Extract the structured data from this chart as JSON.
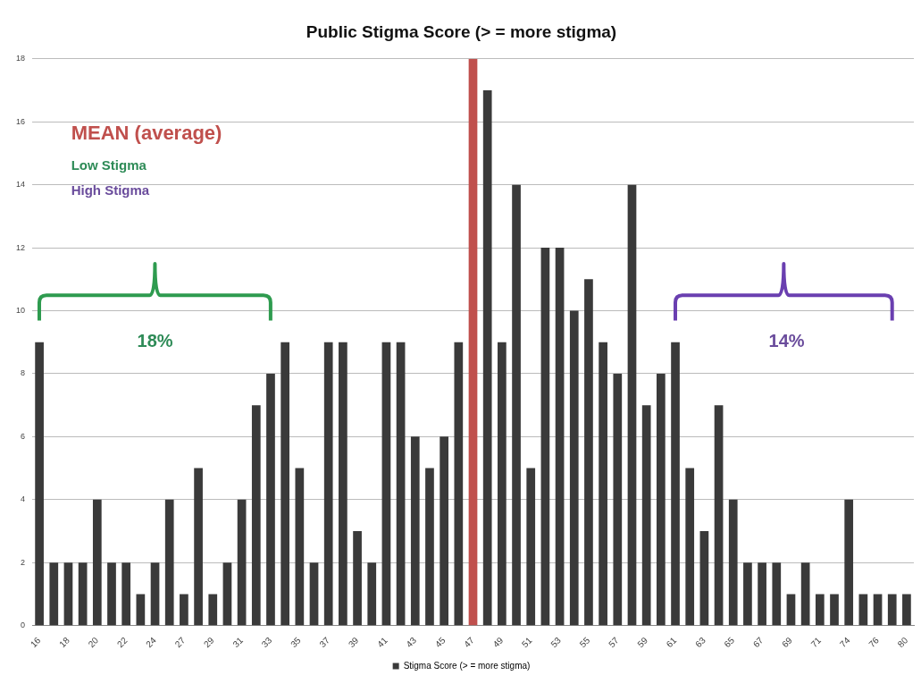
{
  "chart_data": {
    "type": "bar",
    "title": "Public Stigma Score (> = more stigma)",
    "categories": [
      "16",
      null,
      "18",
      null,
      "20",
      null,
      "22",
      null,
      "24",
      null,
      "27",
      null,
      "29",
      null,
      "31",
      null,
      "33",
      null,
      "35",
      null,
      "37",
      null,
      "39",
      null,
      "41",
      null,
      "43",
      null,
      "45",
      null,
      "47",
      null,
      "49",
      null,
      "51",
      null,
      "53",
      null,
      "55",
      null,
      "57",
      null,
      "59",
      null,
      "61",
      null,
      "63",
      null,
      "65",
      null,
      "67",
      null,
      "69",
      null,
      "71",
      null,
      "74",
      null,
      "76",
      null,
      "80"
    ],
    "series": [
      {
        "name": "Stigma Score (> = more stigma)",
        "color": "#3a3a3a",
        "values": [
          9,
          2,
          2,
          2,
          4,
          2,
          2,
          1,
          2,
          4,
          1,
          5,
          1,
          2,
          4,
          7,
          8,
          9,
          5,
          2,
          9,
          9,
          3,
          2,
          9,
          9,
          6,
          5,
          6,
          9,
          18,
          17,
          9,
          14,
          5,
          12,
          12,
          10,
          11,
          9,
          8,
          14,
          7,
          8,
          9,
          5,
          3,
          7,
          4,
          2,
          2,
          2,
          1,
          2,
          1,
          1,
          4,
          1,
          1,
          1,
          1
        ],
        "colors": [
          "#3a3a3a",
          "#3a3a3a",
          "#3a3a3a",
          "#3a3a3a",
          "#3a3a3a",
          "#3a3a3a",
          "#3a3a3a",
          "#3a3a3a",
          "#3a3a3a",
          "#3a3a3a",
          "#3a3a3a",
          "#3a3a3a",
          "#3a3a3a",
          "#3a3a3a",
          "#3a3a3a",
          "#3a3a3a",
          "#3a3a3a",
          "#3a3a3a",
          "#3a3a3a",
          "#3a3a3a",
          "#3a3a3a",
          "#3a3a3a",
          "#3a3a3a",
          "#3a3a3a",
          "#3a3a3a",
          "#3a3a3a",
          "#3a3a3a",
          "#3a3a3a",
          "#3a3a3a",
          "#3a3a3a",
          "#c0504d",
          "#3a3a3a",
          "#3a3a3a",
          "#3a3a3a",
          "#3a3a3a",
          "#3a3a3a",
          "#3a3a3a",
          "#3a3a3a",
          "#3a3a3a",
          "#3a3a3a",
          "#3a3a3a",
          "#3a3a3a",
          "#3a3a3a",
          "#3a3a3a",
          "#3a3a3a",
          "#3a3a3a",
          "#3a3a3a",
          "#3a3a3a",
          "#3a3a3a",
          "#3a3a3a",
          "#3a3a3a",
          "#3a3a3a",
          "#3a3a3a",
          "#3a3a3a",
          "#3a3a3a",
          "#3a3a3a",
          "#3a3a3a",
          "#3a3a3a",
          "#3a3a3a",
          "#3a3a3a",
          "#3a3a3a"
        ]
      }
    ],
    "ylim": [
      0,
      18
    ],
    "yticks": [
      0,
      2,
      4,
      6,
      8,
      10,
      12,
      14,
      16,
      18
    ],
    "grid": "y",
    "legend": "bottom",
    "annotations": [
      "MEAN (average)",
      "Low Stigma",
      "High Stigma",
      "18%",
      "14%"
    ]
  }
}
